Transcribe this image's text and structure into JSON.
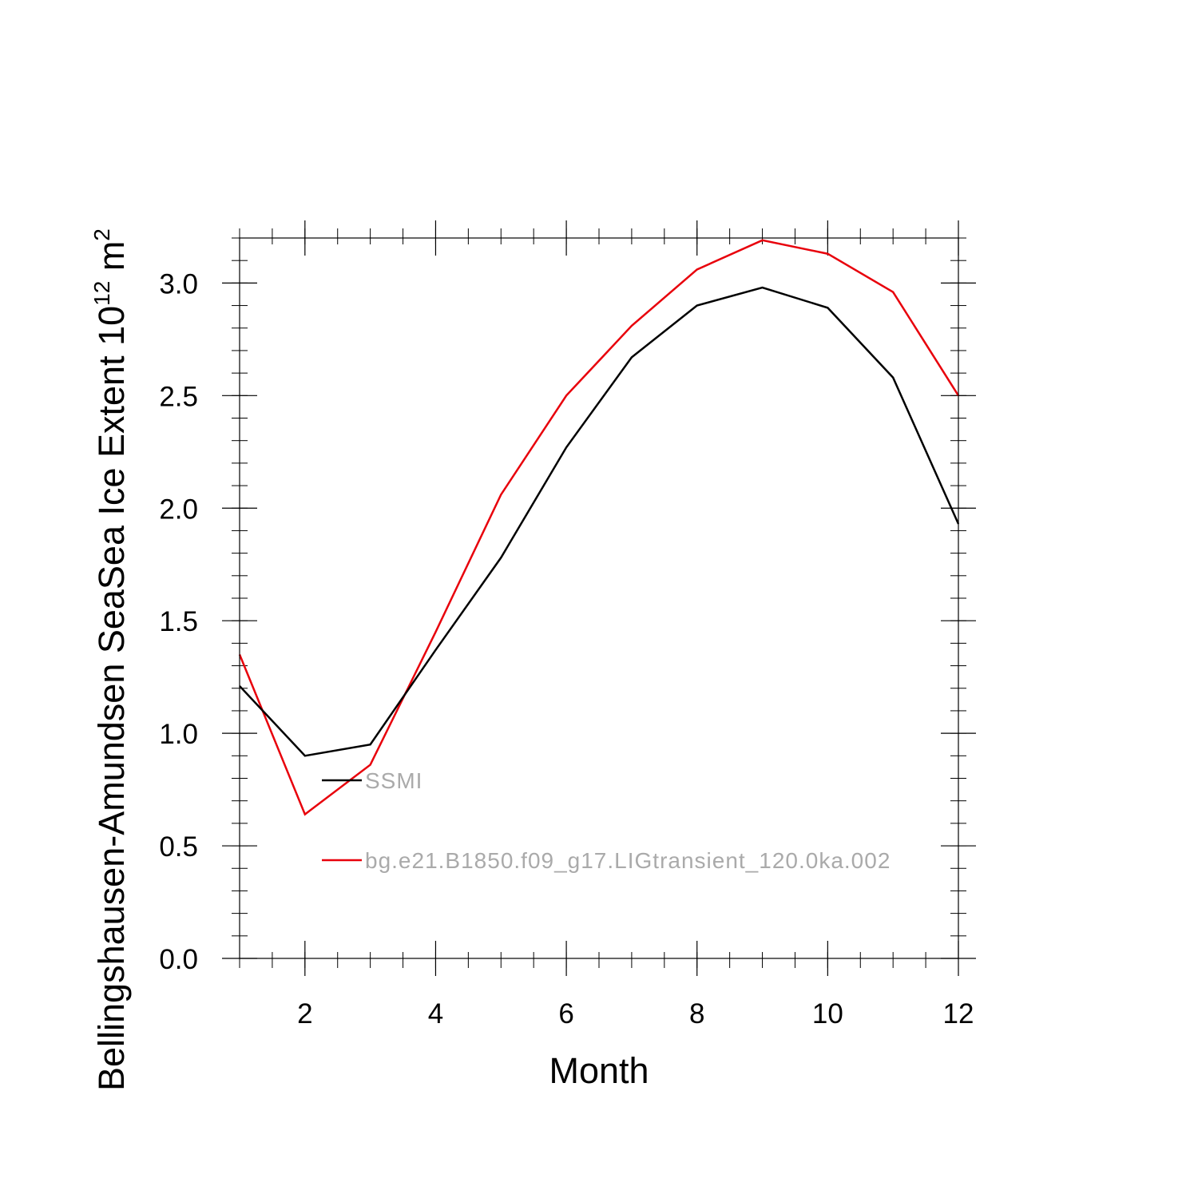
{
  "chart_data": {
    "type": "line",
    "title": "",
    "xlabel": "Month",
    "ylabel": "Bellingshausen-Amundsen SeaSea Ice Extent 10",
    "ylabel_exp": "12",
    "ylabel_unit": " m",
    "ylabel_unit_exp": "2",
    "xlim": [
      1,
      12
    ],
    "ylim": [
      0,
      3.2
    ],
    "xticks": [
      2,
      4,
      6,
      8,
      10,
      12
    ],
    "yticks": [
      0,
      0.5,
      1,
      1.5,
      2,
      2.5,
      3
    ],
    "ytick_labels": [
      "0.0",
      "0.5",
      "1.0",
      "1.5",
      "2.0",
      "2.5",
      "3.0"
    ],
    "xtick_labels": [
      "2",
      "4",
      "6",
      "8",
      "10",
      "12"
    ],
    "x": [
      1,
      2,
      3,
      4,
      5,
      6,
      7,
      8,
      9,
      10,
      11,
      12
    ],
    "series": [
      {
        "name": "SSMI",
        "color": "#000000",
        "values": [
          1.21,
          0.9,
          0.95,
          1.37,
          1.78,
          2.27,
          2.67,
          2.9,
          2.98,
          2.89,
          2.58,
          1.93
        ]
      },
      {
        "name": "bg.e21.B1850.f09_g17.LIGtransient_120.0ka.002",
        "color": "#e8000b",
        "values": [
          1.35,
          0.64,
          0.86,
          1.45,
          2.06,
          2.5,
          2.81,
          3.06,
          3.19,
          3.13,
          2.96,
          2.5
        ]
      }
    ],
    "legend": "inside-left",
    "grid": false
  }
}
